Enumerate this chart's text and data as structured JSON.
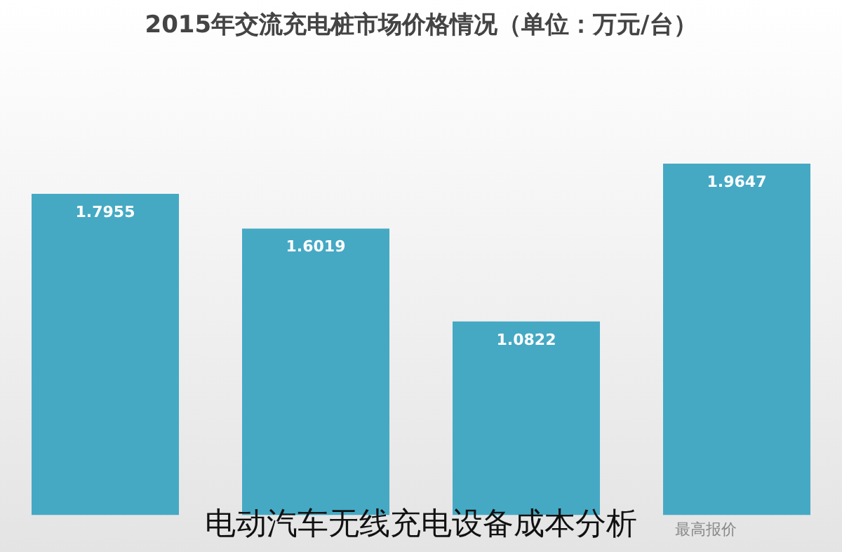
{
  "chart_data": {
    "type": "bar",
    "title": "2015年交流充电桩市场价格情况（单位：万元/台）",
    "categories": [
      null,
      null,
      null,
      "最高报价"
    ],
    "values": [
      1.7955,
      1.6019,
      1.0822,
      1.9647
    ],
    "color": "#45a9c4",
    "data_labels": true,
    "grid": false,
    "legend": false,
    "tick_labels": "x",
    "annotations": [
      "电动汽车无线充电设备成本分析"
    ]
  }
}
